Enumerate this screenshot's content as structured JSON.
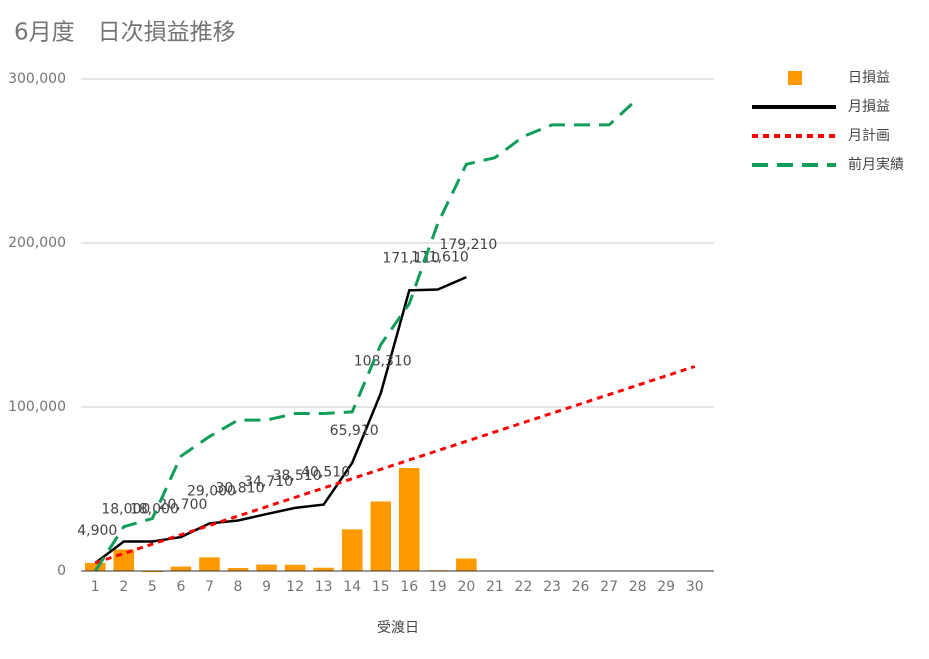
{
  "chart_data": {
    "type": "combo",
    "title": "6月度　日次損益推移",
    "x_label": "受渡日",
    "categories": [
      "1",
      "2",
      "5",
      "6",
      "7",
      "8",
      "9",
      "12",
      "13",
      "14",
      "15",
      "16",
      "19",
      "20",
      "21",
      "22",
      "23",
      "26",
      "27",
      "28",
      "29",
      "30"
    ],
    "ylim": [
      0,
      300000
    ],
    "yticks": [
      0,
      {
        "value": 100000,
        "label": "100,000"
      },
      {
        "value": 200000,
        "label": "200,000"
      },
      {
        "value": 300000,
        "label": "300,000"
      }
    ],
    "grid": true,
    "legend": "right",
    "series": [
      {
        "name": "日損益",
        "type": "bar",
        "color": "#ff9900",
        "values": [
          4900,
          13100,
          0,
          2700,
          8300,
          1810,
          3900,
          3800,
          2000,
          25400,
          42400,
          62800,
          500,
          7600,
          null,
          null,
          null,
          null,
          null,
          null,
          null,
          null
        ]
      },
      {
        "name": "月損益",
        "type": "line",
        "line_style": "solid",
        "color": "#000000",
        "values": [
          4900,
          18000,
          18000,
          20700,
          29000,
          30810,
          34710,
          38510,
          40510,
          65910,
          108310,
          171110,
          171610,
          179210,
          null,
          null,
          null,
          null,
          null,
          null,
          null,
          null
        ],
        "value_labels": [
          "4,900",
          "18,000",
          "18,000",
          "20,700",
          "29,000",
          "30,810",
          "34,710",
          "38,510",
          "40,510",
          "65,910",
          "108,310",
          "171,110",
          "171,610",
          "179,210",
          null,
          null,
          null,
          null,
          null,
          null,
          null,
          null
        ]
      },
      {
        "name": "月計画",
        "type": "line",
        "line_style": "dashed",
        "color": "#ff0000",
        "values": [
          5000,
          10700,
          16400,
          22100,
          27800,
          33500,
          39200,
          44900,
          50600,
          56300,
          62000,
          67700,
          73400,
          79100,
          84800,
          90500,
          96200,
          101900,
          107600,
          113300,
          119000,
          124700
        ]
      },
      {
        "name": "前月実績",
        "type": "line",
        "line_style": "long-dashed",
        "color": "#0f9d58",
        "values": [
          0,
          27000,
          32000,
          70000,
          82000,
          92000,
          92000,
          96000,
          96000,
          97000,
          138000,
          163000,
          212000,
          248000,
          252000,
          265000,
          272000,
          272000,
          272000,
          288000,
          null,
          null
        ]
      }
    ]
  }
}
